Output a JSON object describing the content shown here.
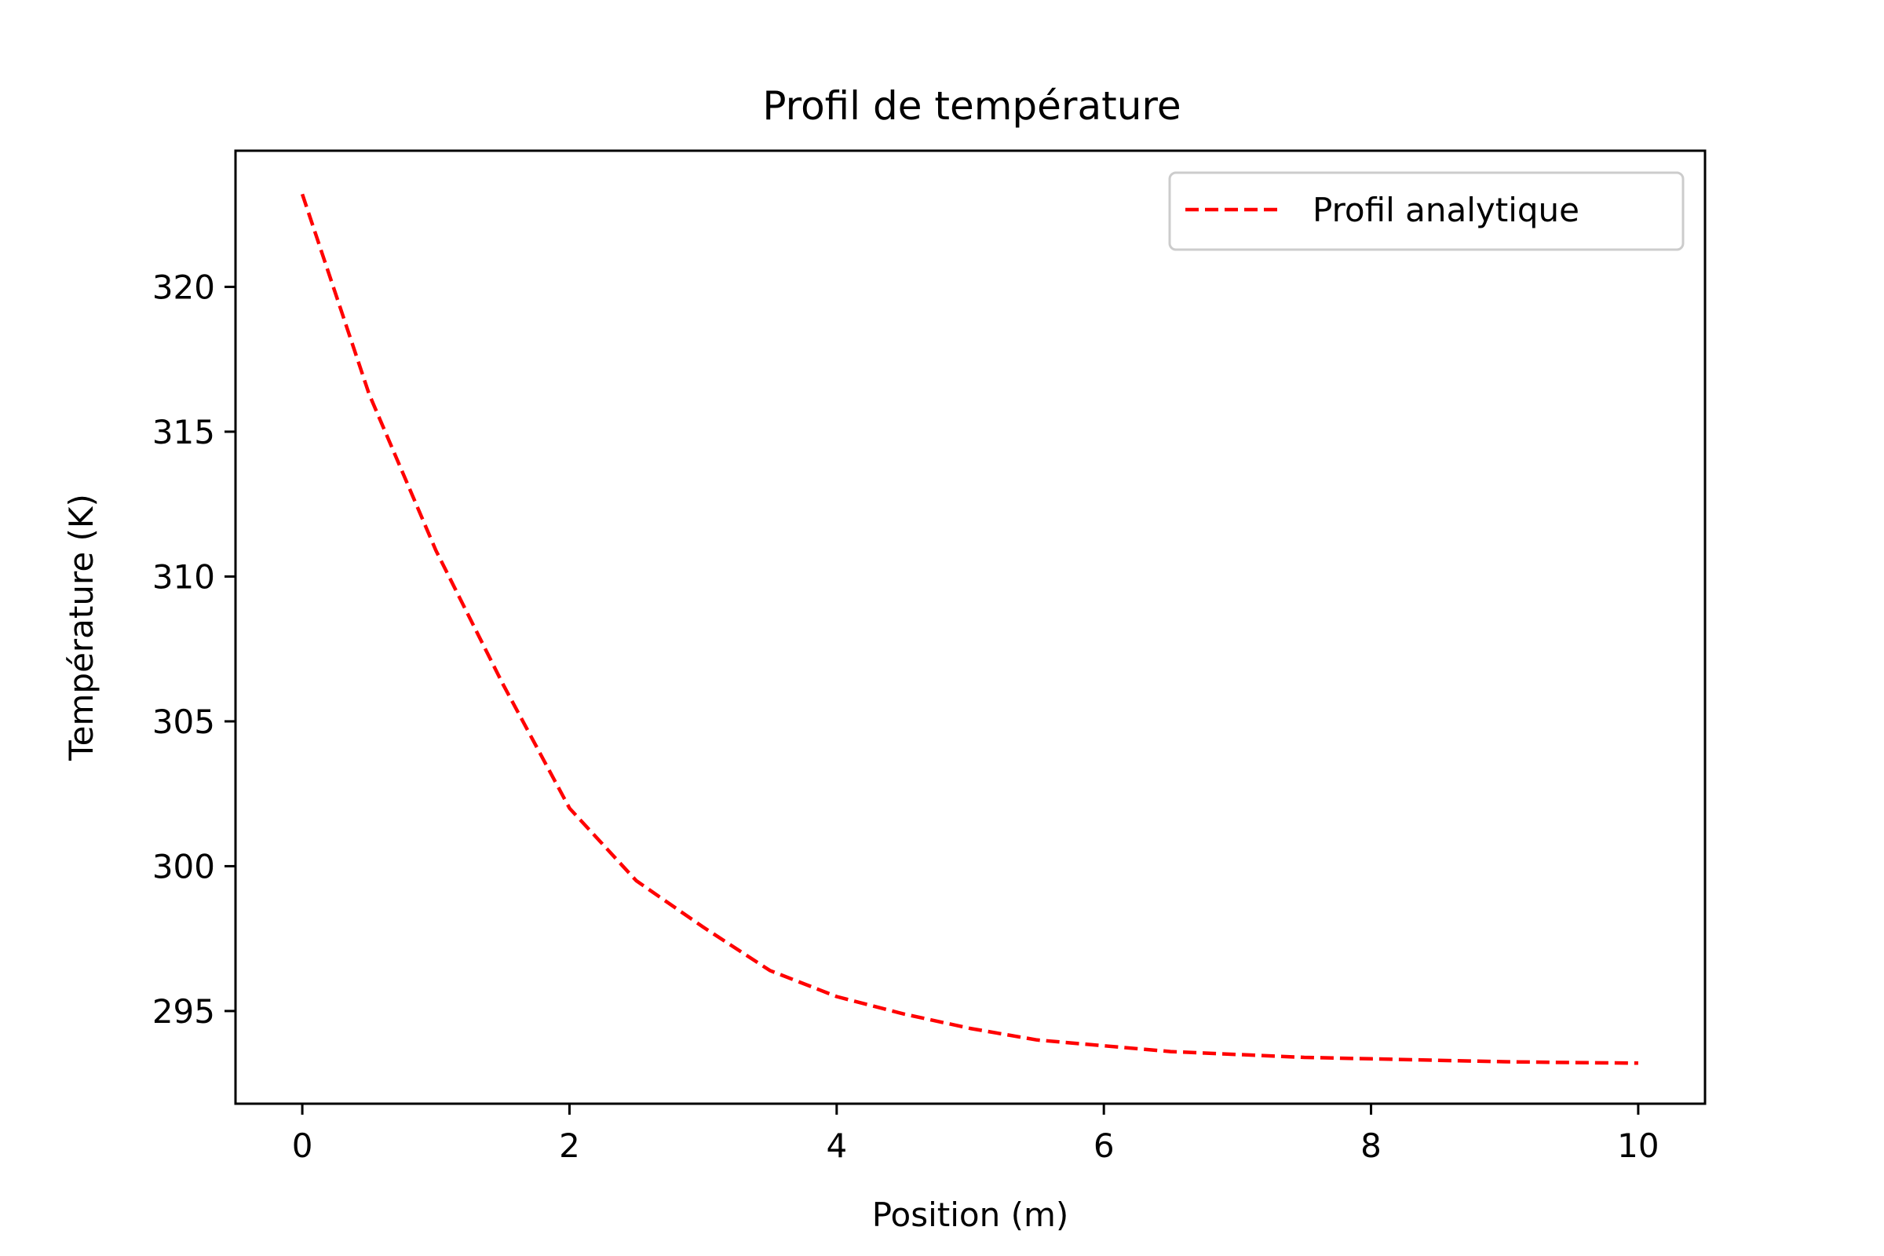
{
  "chart_data": {
    "type": "line",
    "title": "Profil de température",
    "xlabel": "Position (m)",
    "ylabel": "Température (K)",
    "xlim": [
      -0.5,
      10.5
    ],
    "ylim": [
      291.8,
      324.7
    ],
    "xticks": [
      0,
      2,
      4,
      6,
      8,
      10
    ],
    "yticks": [
      295,
      300,
      305,
      310,
      315,
      320
    ],
    "grid": false,
    "legend_position": "top-right",
    "series": [
      {
        "name": "Profil analytique",
        "color": "#ff0000",
        "linestyle": "dashed",
        "x": [
          0,
          0.5,
          1,
          1.5,
          2,
          2.5,
          3,
          3.5,
          4,
          4.5,
          5,
          5.5,
          6,
          6.5,
          7,
          7.5,
          8,
          8.5,
          9,
          9.5,
          10
        ],
        "y": [
          323.2,
          316.3,
          310.9,
          306.3,
          302.0,
          299.5,
          297.9,
          296.4,
          295.5,
          294.9,
          294.4,
          294.0,
          293.8,
          293.6,
          293.5,
          293.4,
          293.35,
          293.3,
          293.25,
          293.22,
          293.2
        ]
      }
    ]
  }
}
